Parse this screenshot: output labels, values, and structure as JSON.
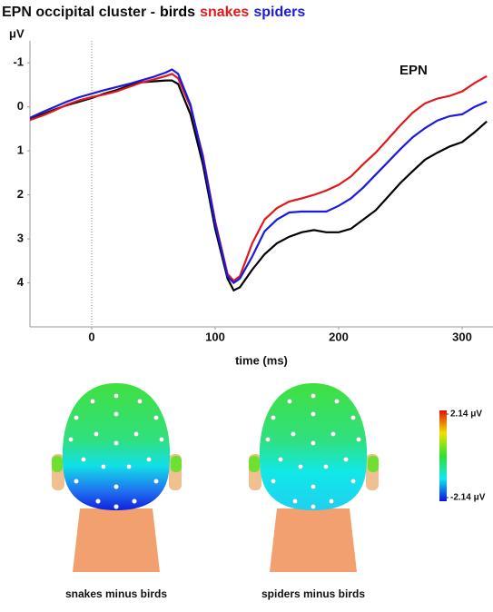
{
  "chart_data": {
    "type": "line",
    "title": "EPN occipital cluster -",
    "ylabel": "μV",
    "xlabel": "time (ms)",
    "annotation": "EPN",
    "x": [
      -50,
      -40,
      -30,
      -20,
      -10,
      0,
      10,
      20,
      30,
      40,
      50,
      60,
      65,
      70,
      80,
      90,
      100,
      110,
      115,
      120,
      130,
      140,
      150,
      160,
      170,
      180,
      190,
      200,
      210,
      220,
      230,
      240,
      250,
      260,
      270,
      280,
      290,
      300,
      310,
      320
    ],
    "series": [
      {
        "name": "birds",
        "color": "#000000",
        "values": [
          0.27,
          0.17,
          0.06,
          -0.04,
          -0.12,
          -0.2,
          -0.3,
          -0.38,
          -0.48,
          -0.56,
          -0.58,
          -0.6,
          -0.6,
          -0.52,
          0.17,
          1.3,
          2.77,
          3.9,
          4.17,
          4.1,
          3.7,
          3.35,
          3.1,
          2.95,
          2.85,
          2.8,
          2.85,
          2.85,
          2.77,
          2.56,
          2.35,
          2.04,
          1.73,
          1.46,
          1.2,
          1.04,
          0.9,
          0.8,
          0.58,
          0.33
        ]
      },
      {
        "name": "snakes",
        "color": "#e0191c",
        "values": [
          0.3,
          0.2,
          0.08,
          -0.05,
          -0.15,
          -0.22,
          -0.28,
          -0.35,
          -0.45,
          -0.55,
          -0.62,
          -0.7,
          -0.75,
          -0.65,
          0.0,
          1.1,
          2.6,
          3.8,
          3.95,
          3.85,
          3.1,
          2.56,
          2.3,
          2.15,
          2.08,
          2.0,
          1.9,
          1.77,
          1.58,
          1.3,
          1.04,
          0.73,
          0.42,
          0.13,
          -0.08,
          -0.19,
          -0.25,
          -0.35,
          -0.54,
          -0.7
        ]
      },
      {
        "name": "spiders",
        "color": "#1a1ae0",
        "values": [
          0.25,
          0.12,
          0.0,
          -0.12,
          -0.22,
          -0.3,
          -0.38,
          -0.45,
          -0.52,
          -0.6,
          -0.68,
          -0.78,
          -0.85,
          -0.75,
          -0.05,
          1.15,
          2.65,
          3.85,
          4.0,
          3.9,
          3.4,
          2.83,
          2.56,
          2.4,
          2.38,
          2.38,
          2.38,
          2.25,
          2.08,
          1.83,
          1.54,
          1.25,
          0.96,
          0.69,
          0.48,
          0.31,
          0.21,
          0.17,
          0.0,
          -0.12
        ]
      }
    ],
    "xlim": [
      -50,
      325
    ],
    "xticks": [
      0,
      100,
      200,
      300
    ],
    "ylim": [
      -1.5,
      5
    ],
    "yticks": [
      -1,
      0,
      1,
      2,
      3,
      4
    ],
    "y_inverted": true
  },
  "topomaps": {
    "labels": [
      "snakes minus birds",
      "spiders minus birds"
    ],
    "colorbar": [
      {
        "value": 2.14,
        "label": "2.14 μV"
      },
      {
        "value": -2.14,
        "label": "-2.14 μV"
      }
    ]
  }
}
